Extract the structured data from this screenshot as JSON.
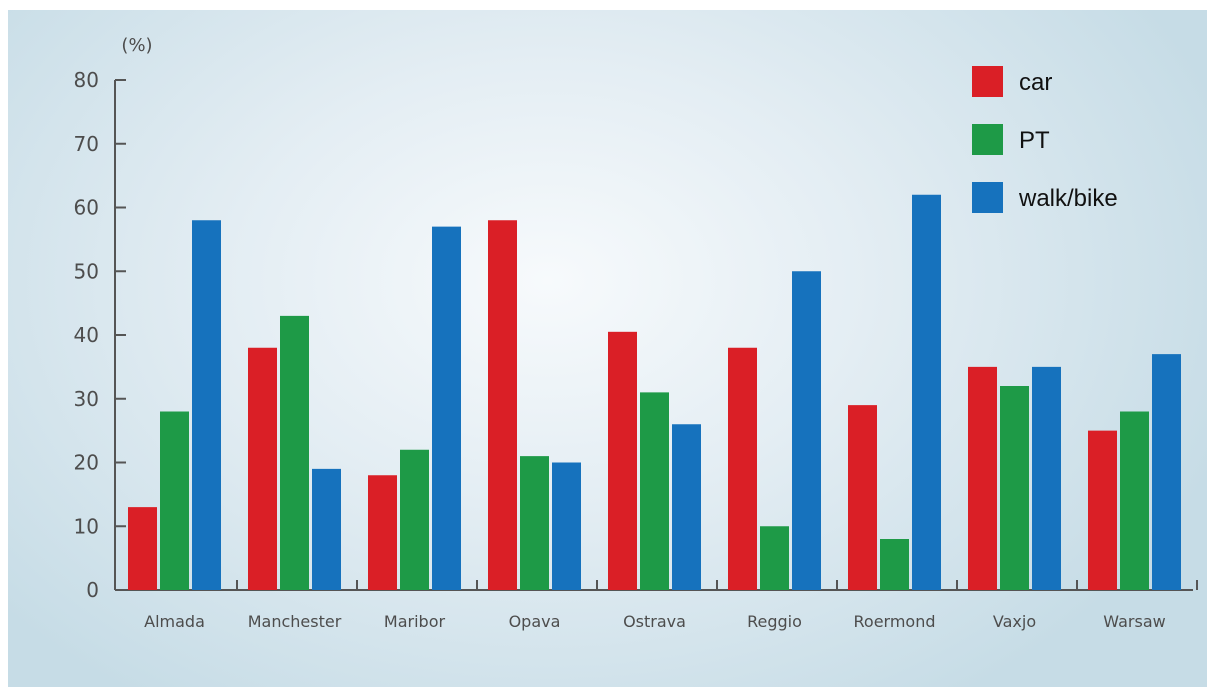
{
  "chart_data": {
    "type": "bar",
    "y_unit_label": "(%)",
    "categories": [
      "Almada",
      "Manchester",
      "Maribor",
      "Opava",
      "Ostrava",
      "Reggio",
      "Roermond",
      "Vaxjo",
      "Warsaw"
    ],
    "series": [
      {
        "name": "car",
        "color": "#da1f26",
        "values": [
          13,
          38,
          18,
          58,
          40.5,
          38,
          29,
          35,
          25
        ]
      },
      {
        "name": "PT",
        "color": "#1e9a47",
        "values": [
          28,
          43,
          22,
          21,
          31,
          10,
          8,
          32,
          28
        ]
      },
      {
        "name": "walk/bike",
        "color": "#1672bd",
        "values": [
          58,
          19,
          57,
          20,
          26,
          50,
          62,
          35,
          37
        ]
      }
    ],
    "ylim": [
      0,
      80
    ],
    "yticks": [
      0,
      10,
      20,
      30,
      40,
      50,
      60,
      70,
      80
    ],
    "grid": false,
    "legend_position": "top-right"
  }
}
